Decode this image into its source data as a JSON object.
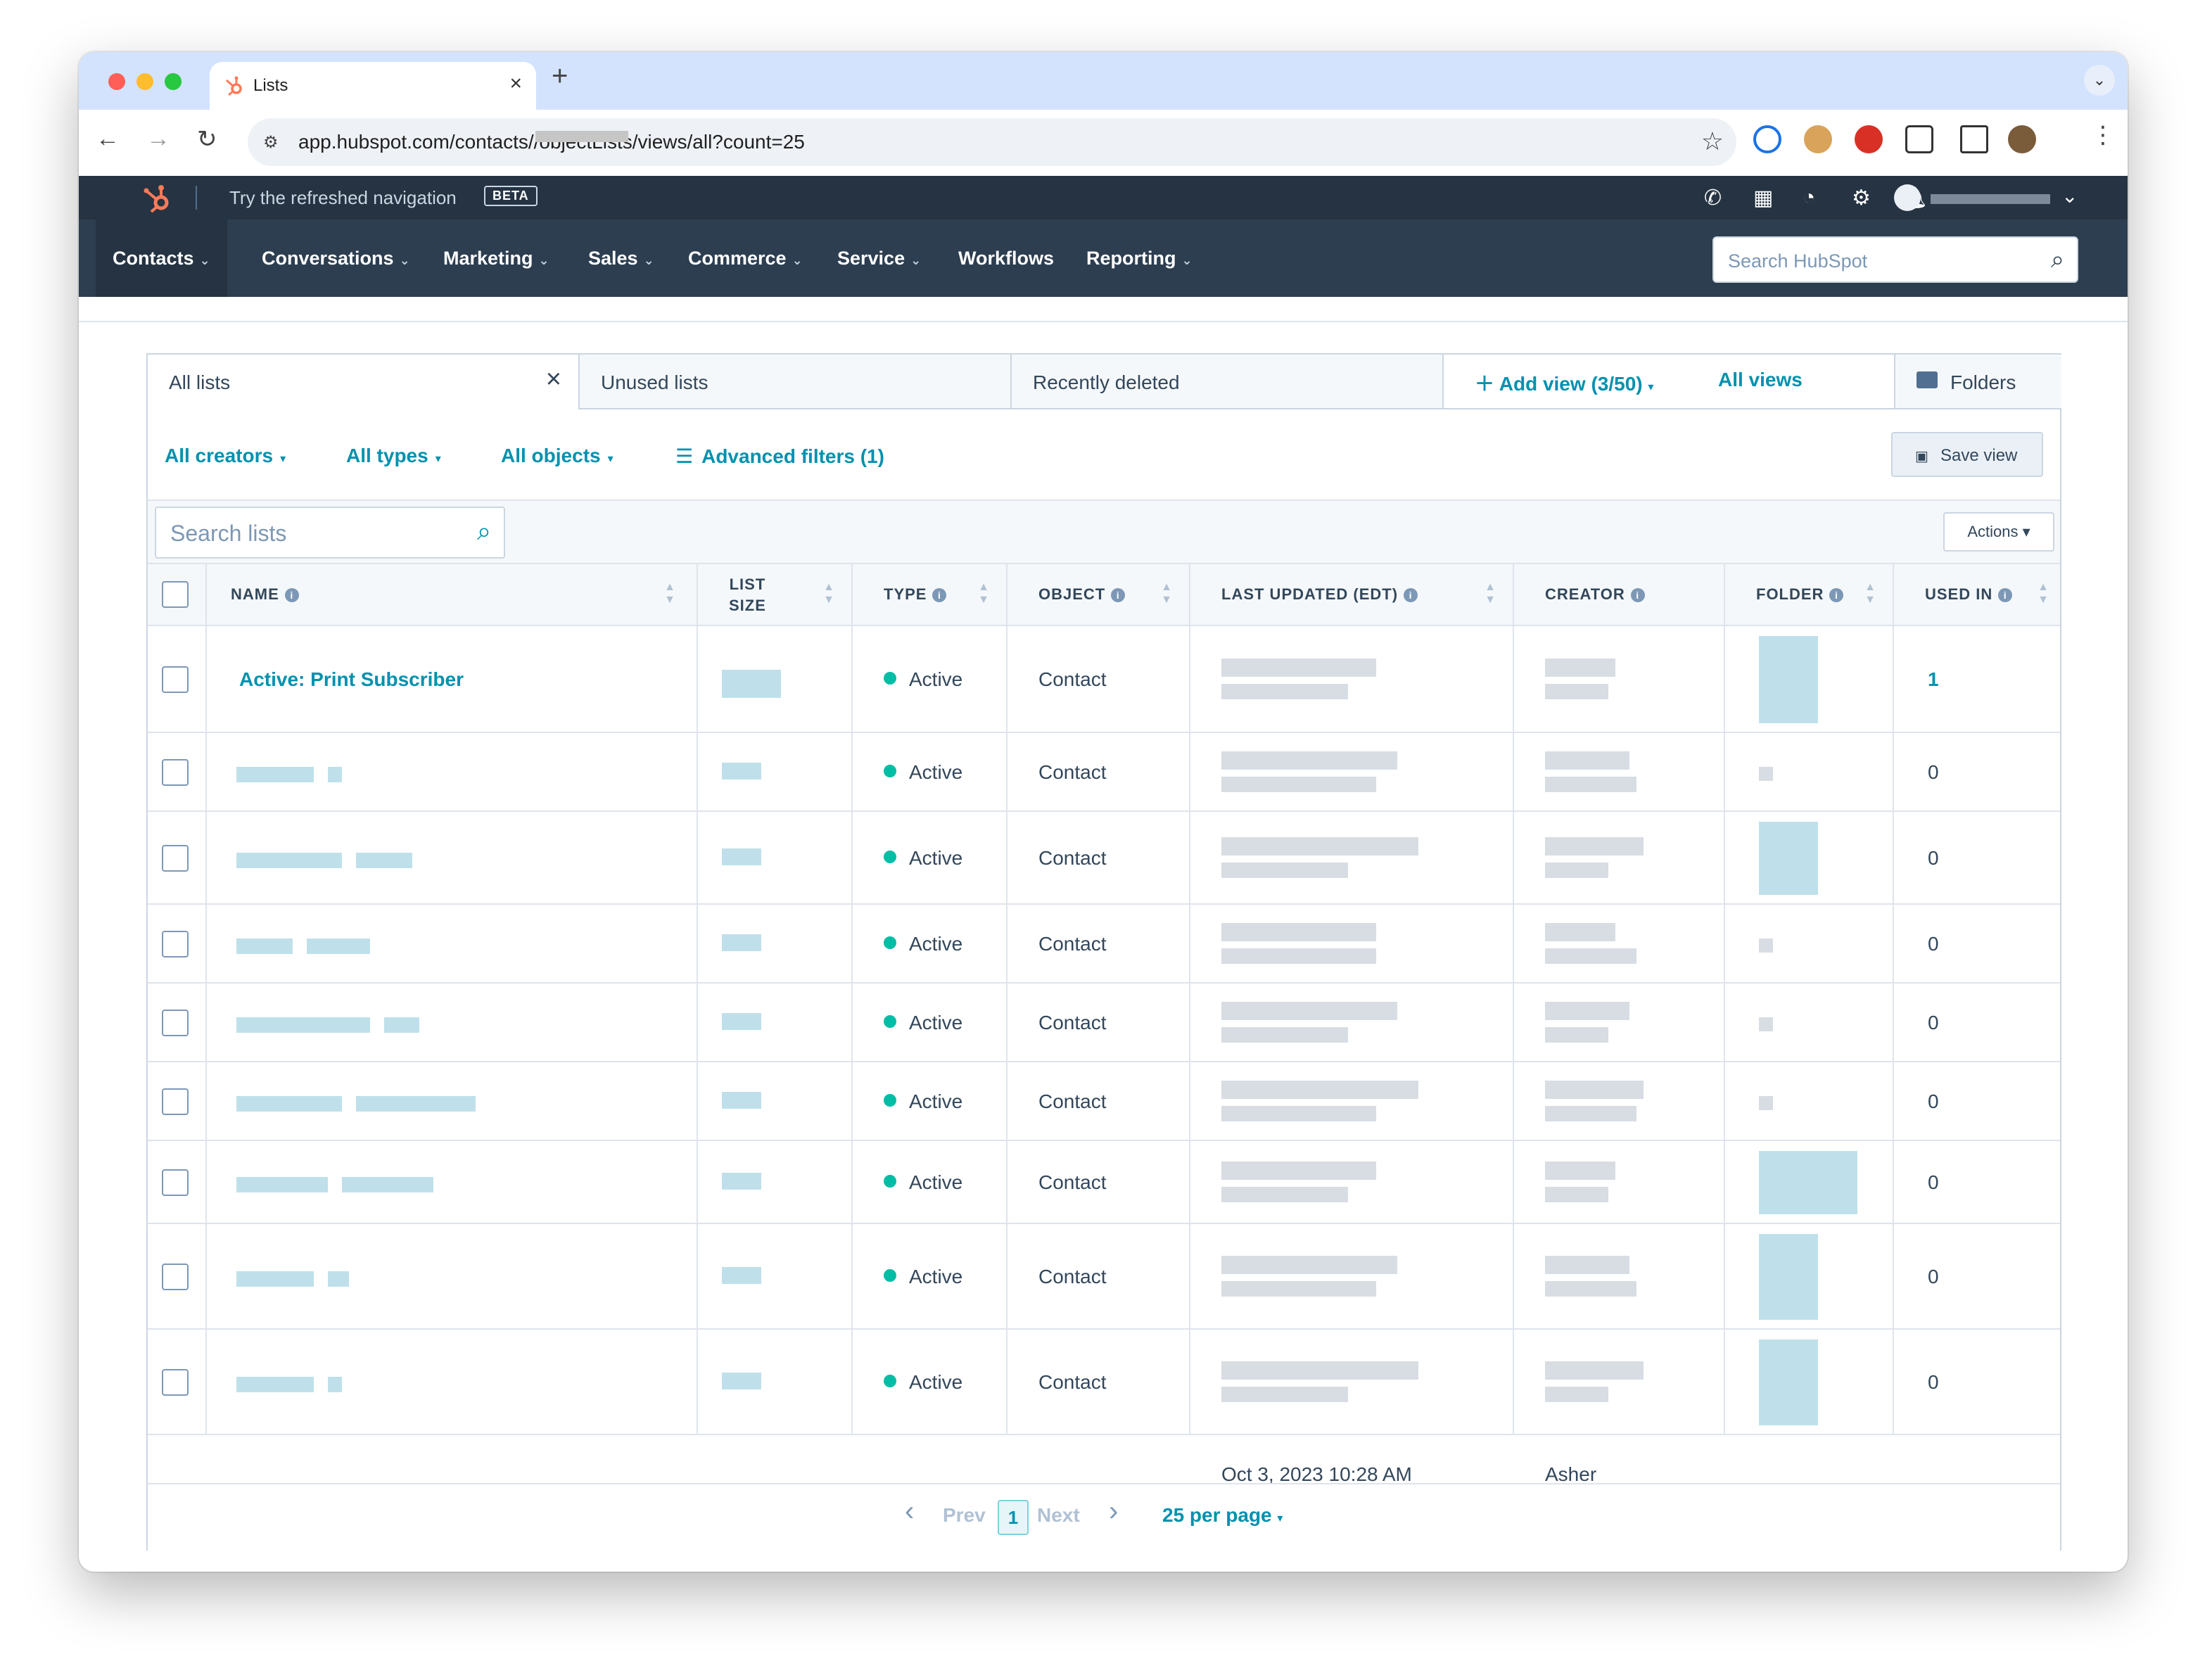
{
  "browser": {
    "tab_title": "Lists",
    "url_prefix": "app.hubspot.com/contacts/",
    "url_suffix": "/objectLists/views/all?count=25"
  },
  "hubspot_top": {
    "try_text": "Try the refreshed navigation",
    "beta_badge": "BETA"
  },
  "nav": {
    "items": [
      "Contacts",
      "Conversations",
      "Marketing",
      "Sales",
      "Commerce",
      "Service",
      "Workflows",
      "Reporting"
    ],
    "search_placeholder": "Search HubSpot"
  },
  "views": {
    "tabs": [
      "All lists",
      "Unused lists",
      "Recently deleted"
    ],
    "add_view": "Add view (3/50)",
    "all_views": "All views",
    "folders": "Folders"
  },
  "filters": {
    "creators": "All creators",
    "types": "All types",
    "objects": "All objects",
    "advanced": "Advanced filters (1)",
    "save_view": "Save view"
  },
  "toolbar": {
    "search_placeholder": "Search lists",
    "actions": "Actions"
  },
  "table": {
    "headers": {
      "name": "NAME",
      "list_size_1": "LIST",
      "list_size_2": "SIZE",
      "type": "TYPE",
      "object": "OBJECT",
      "last_updated": "LAST UPDATED (EDT)",
      "creator": "CREATOR",
      "folder": "FOLDER",
      "used_in": "USED IN"
    },
    "rows": [
      {
        "name": "Active: Print Subscriber",
        "type": "Active",
        "object": "Contact",
        "used_in": "1"
      },
      {
        "name": "",
        "type": "Active",
        "object": "Contact",
        "used_in": "0"
      },
      {
        "name": "",
        "type": "Active",
        "object": "Contact",
        "used_in": "0"
      },
      {
        "name": "",
        "type": "Active",
        "object": "Contact",
        "used_in": "0"
      },
      {
        "name": "",
        "type": "Active",
        "object": "Contact",
        "used_in": "0"
      },
      {
        "name": "",
        "type": "Active",
        "object": "Contact",
        "used_in": "0"
      },
      {
        "name": "",
        "type": "Active",
        "object": "Contact",
        "used_in": "0"
      },
      {
        "name": "",
        "type": "Active",
        "object": "Contact",
        "used_in": "0"
      },
      {
        "name": "",
        "type": "Active",
        "object": "Contact",
        "used_in": "0"
      }
    ],
    "partial_row": {
      "last_updated": "Oct 3, 2023 10:28 AM",
      "creator": "Asher"
    }
  },
  "pagination": {
    "prev": "Prev",
    "page": "1",
    "next": "Next",
    "per_page": "25 per page"
  },
  "colors": {
    "nav_bg": "#2d3e50",
    "top_bg": "#253342",
    "link": "#0091ae",
    "active_dot": "#00bda5",
    "hubspot_orange": "#ff7a59"
  }
}
